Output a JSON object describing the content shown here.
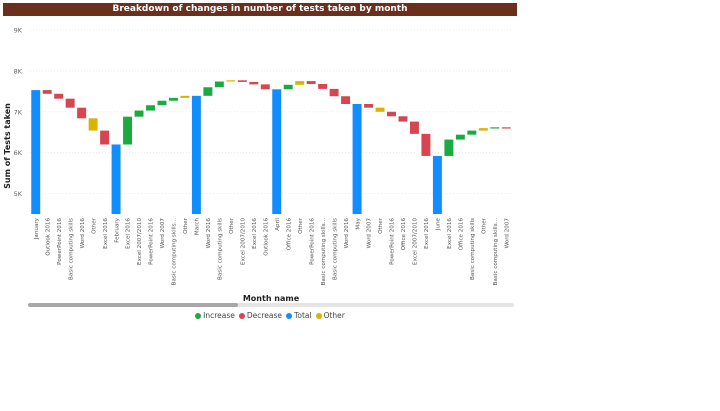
{
  "chart_data": {
    "type": "waterfall",
    "title": "Breakdown of changes in number of tests taken by month",
    "xlabel": "Month name",
    "ylabel": "Sum of Tests taken",
    "yticks": [
      "5K",
      "6K",
      "7K",
      "8K",
      "9K"
    ],
    "ylim": [
      4500,
      9000
    ],
    "legend": [
      {
        "label": "Increase",
        "color": "#1aab40"
      },
      {
        "label": "Decrease",
        "color": "#d64550"
      },
      {
        "label": "Total",
        "color": "#118dff"
      },
      {
        "label": "Other",
        "color": "#d9b300"
      }
    ],
    "categories": [
      "January",
      "Outlook 2016",
      "PowerPoint 2016",
      "Basic computing skills",
      "Word 2016",
      "Other",
      "Excel 2016",
      "February",
      "Excel 2016",
      "Excel 2007/2010",
      "PowerPoint 2016",
      "Word 2007",
      "Basic computing skills...",
      "Other",
      "March",
      "Word 2016",
      "Basic computing skills",
      "Other",
      "Excel 2007/2010",
      "Excel 2016",
      "Outlook 2016",
      "April",
      "Office 2016",
      "Other",
      "PowerPoint 2016",
      "Basic computing skills...",
      "Basic computing skills",
      "Word 2016",
      "May",
      "Word 2007",
      "Other",
      "PowerPoint 2016",
      "Office 2016",
      "Excel 2007/2010",
      "Excel 2016",
      "June",
      "Excel 2016",
      "Office 2016",
      "Basic computing skills",
      "Other",
      "Basic computing skills...",
      "Word 2007"
    ],
    "bars": [
      {
        "kind": "total",
        "start": 4500,
        "end": 7530
      },
      {
        "kind": "decrease",
        "start": 7530,
        "end": 7440
      },
      {
        "kind": "decrease",
        "start": 7440,
        "end": 7320
      },
      {
        "kind": "decrease",
        "start": 7320,
        "end": 7100
      },
      {
        "kind": "decrease",
        "start": 7100,
        "end": 6840
      },
      {
        "kind": "other",
        "start": 6840,
        "end": 6540
      },
      {
        "kind": "decrease",
        "start": 6540,
        "end": 6200
      },
      {
        "kind": "total",
        "start": 4500,
        "end": 6200
      },
      {
        "kind": "increase",
        "start": 6200,
        "end": 6880
      },
      {
        "kind": "increase",
        "start": 6880,
        "end": 7030
      },
      {
        "kind": "increase",
        "start": 7030,
        "end": 7160
      },
      {
        "kind": "increase",
        "start": 7160,
        "end": 7270
      },
      {
        "kind": "increase",
        "start": 7270,
        "end": 7340
      },
      {
        "kind": "other",
        "start": 7340,
        "end": 7390
      },
      {
        "kind": "total",
        "start": 4500,
        "end": 7390
      },
      {
        "kind": "increase",
        "start": 7390,
        "end": 7600
      },
      {
        "kind": "increase",
        "start": 7600,
        "end": 7740
      },
      {
        "kind": "other",
        "start": 7740,
        "end": 7770
      },
      {
        "kind": "decrease",
        "start": 7770,
        "end": 7730
      },
      {
        "kind": "decrease",
        "start": 7730,
        "end": 7670
      },
      {
        "kind": "decrease",
        "start": 7670,
        "end": 7550
      },
      {
        "kind": "total",
        "start": 4500,
        "end": 7550
      },
      {
        "kind": "increase",
        "start": 7550,
        "end": 7660
      },
      {
        "kind": "other",
        "start": 7660,
        "end": 7750
      },
      {
        "kind": "decrease",
        "start": 7750,
        "end": 7680
      },
      {
        "kind": "decrease",
        "start": 7680,
        "end": 7560
      },
      {
        "kind": "decrease",
        "start": 7560,
        "end": 7380
      },
      {
        "kind": "decrease",
        "start": 7380,
        "end": 7190
      },
      {
        "kind": "total",
        "start": 4500,
        "end": 7190
      },
      {
        "kind": "decrease",
        "start": 7190,
        "end": 7100
      },
      {
        "kind": "other",
        "start": 7100,
        "end": 7000
      },
      {
        "kind": "decrease",
        "start": 7000,
        "end": 6890
      },
      {
        "kind": "decrease",
        "start": 6890,
        "end": 6760
      },
      {
        "kind": "decrease",
        "start": 6760,
        "end": 6460
      },
      {
        "kind": "decrease",
        "start": 6460,
        "end": 5920
      },
      {
        "kind": "total",
        "start": 4500,
        "end": 5920
      },
      {
        "kind": "increase",
        "start": 5920,
        "end": 6320
      },
      {
        "kind": "increase",
        "start": 6320,
        "end": 6440
      },
      {
        "kind": "increase",
        "start": 6440,
        "end": 6540
      },
      {
        "kind": "other",
        "start": 6540,
        "end": 6600
      },
      {
        "kind": "increase",
        "start": 6600,
        "end": 6620
      },
      {
        "kind": "decrease",
        "start": 6620,
        "end": 6590
      }
    ],
    "grid": true,
    "legend_position": "bottom"
  }
}
